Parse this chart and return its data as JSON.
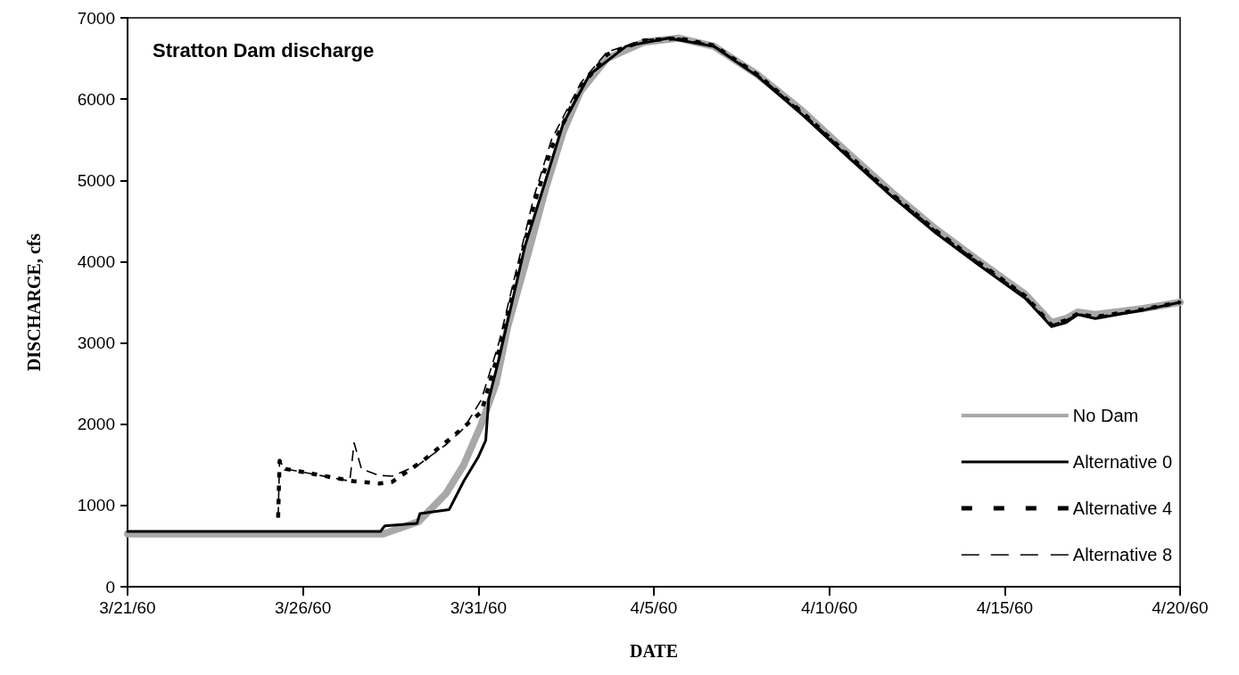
{
  "chart_data": {
    "type": "line",
    "title": "Stratton Dam discharge",
    "xlabel": "DATE",
    "ylabel": "DISCHARGE, cfs",
    "xlim": [
      "1960-03-21",
      "1960-04-20"
    ],
    "xticks": [
      {
        "value": "1960-03-21",
        "label": "3/21/60"
      },
      {
        "value": "1960-03-26",
        "label": "3/26/60"
      },
      {
        "value": "1960-03-31",
        "label": "3/31/60"
      },
      {
        "value": "1960-04-05",
        "label": "4/5/60"
      },
      {
        "value": "1960-04-10",
        "label": "4/10/60"
      },
      {
        "value": "1960-04-15",
        "label": "4/15/60"
      },
      {
        "value": "1960-04-20",
        "label": "4/20/60"
      }
    ],
    "ylim": [
      0,
      7000
    ],
    "yticks": [
      0,
      1000,
      2000,
      3000,
      4000,
      5000,
      6000,
      7000
    ],
    "grid": false,
    "legend": "bottom right",
    "marker": "none",
    "series": [
      {
        "name": "No Dam",
        "color": "#a8a8a8",
        "line_style": "solid",
        "x": [
          "1960-03-21T00:00",
          "1960-03-28T07:00",
          "1960-03-29T07:00",
          "1960-03-30T02:00",
          "1960-03-30T14:00",
          "1960-03-31T02:00",
          "1960-03-31T12:00",
          "1960-03-31T20:00",
          "1960-04-01T10:00",
          "1960-04-01T22:00",
          "1960-04-02T10:00",
          "1960-04-02T22:00",
          "1960-04-03T16:00",
          "1960-04-04T17:00",
          "1960-04-05T17:00",
          "1960-04-06T17:00",
          "1960-04-07T23:00",
          "1960-04-09T06:00",
          "1960-04-10T12:00",
          "1960-04-11T19:00",
          "1960-04-13T01:00",
          "1960-04-14T07:00",
          "1960-04-15T14:00",
          "1960-04-16T08:00",
          "1960-04-16T18:00",
          "1960-04-17T02:00",
          "1960-04-17T14:00",
          "1960-04-18T22:00",
          "1960-04-20T00:00"
        ],
        "values": [
          650,
          650,
          800,
          1150,
          1500,
          2000,
          2500,
          3200,
          4100,
          4900,
          5600,
          6100,
          6500,
          6700,
          6750,
          6650,
          6300,
          5850,
          5350,
          4850,
          4400,
          4000,
          3600,
          3250,
          3300,
          3380,
          3350,
          3420,
          3500
        ]
      },
      {
        "name": "Alternative 0",
        "color": "#000000",
        "line_style": "solid",
        "x": [
          "1960-03-21T00:00",
          "1960-03-28T05:00",
          "1960-03-28T08:00",
          "1960-03-29T06:00",
          "1960-03-29T08:00",
          "1960-03-30T04:00",
          "1960-03-30T14:00",
          "1960-03-31T00:00",
          "1960-03-31T05:00",
          "1960-03-31T07:00",
          "1960-03-31T14:00",
          "1960-03-31T23:00",
          "1960-04-01T08:00",
          "1960-04-01T22:00",
          "1960-04-02T10:00",
          "1960-04-03T04:00",
          "1960-04-04T05:00",
          "1960-04-05T10:00",
          "1960-04-06T17:00",
          "1960-04-07T23:00",
          "1960-04-09T06:00",
          "1960-04-10T12:00",
          "1960-04-11T19:00",
          "1960-04-13T01:00",
          "1960-04-14T07:00",
          "1960-04-15T14:00",
          "1960-04-16T08:00",
          "1960-04-16T18:00",
          "1960-04-17T02:00",
          "1960-04-17T14:00",
          "1960-04-18T22:00",
          "1960-04-20T00:00"
        ],
        "values": [
          680,
          680,
          750,
          780,
          900,
          950,
          1300,
          1600,
          1800,
          2300,
          2800,
          3500,
          4200,
          5000,
          5700,
          6300,
          6650,
          6750,
          6650,
          6280,
          5800,
          5300,
          4800,
          4350,
          3950,
          3550,
          3200,
          3250,
          3350,
          3300,
          3400,
          3500
        ]
      },
      {
        "name": "Alternative 4",
        "color": "#000000",
        "line_style": "dotted",
        "x": [
          "1960-03-25T07:00",
          "1960-03-25T08:00",
          "1960-03-25T12:00",
          "1960-03-27T10:00",
          "1960-03-28T04:00",
          "1960-03-28T13:00",
          "1960-03-29T10:00",
          "1960-03-30T06:00",
          "1960-03-31T02:00",
          "1960-03-31T14:00",
          "1960-04-01T02:00",
          "1960-04-01T14:00",
          "1960-04-02T02:00",
          "1960-04-02T22:00",
          "1960-04-03T16:00",
          "1960-04-04T17:00",
          "1960-04-05T17:00",
          "1960-04-06T17:00",
          "1960-04-07T23:00",
          "1960-04-09T06:00",
          "1960-04-10T12:00",
          "1960-04-11T19:00",
          "1960-04-13T01:00",
          "1960-04-14T07:00",
          "1960-04-15T14:00",
          "1960-04-16T08:00",
          "1960-04-16T18:00",
          "1960-04-17T02:00",
          "1960-04-17T14:00",
          "1960-04-18T22:00",
          "1960-04-20T00:00"
        ],
        "values": [
          850,
          1550,
          1450,
          1300,
          1270,
          1290,
          1550,
          1840,
          2150,
          2900,
          3800,
          4700,
          5400,
          6150,
          6550,
          6720,
          6750,
          6660,
          6300,
          5830,
          5330,
          4830,
          4380,
          3980,
          3580,
          3220,
          3280,
          3360,
          3320,
          3410,
          3500
        ]
      },
      {
        "name": "Alternative 8",
        "color": "#000000",
        "line_style": "dashed",
        "x": [
          "1960-03-25T07:00",
          "1960-03-25T08:00",
          "1960-03-25T12:00",
          "1960-03-27T08:00",
          "1960-03-27T11:00",
          "1960-03-27T16:00",
          "1960-03-28T04:00",
          "1960-03-28T13:00",
          "1960-03-29T07:00",
          "1960-03-30T02:00",
          "1960-03-30T14:00",
          "1960-03-31T02:00",
          "1960-03-31T14:00",
          "1960-04-01T02:00",
          "1960-04-01T14:00",
          "1960-04-02T02:00",
          "1960-04-02T22:00",
          "1960-04-03T16:00",
          "1960-04-04T17:00",
          "1960-04-05T17:00",
          "1960-04-06T17:00",
          "1960-04-07T23:00",
          "1960-04-09T06:00",
          "1960-04-10T12:00",
          "1960-04-11T19:00",
          "1960-04-13T01:00",
          "1960-04-14T07:00",
          "1960-04-15T14:00",
          "1960-04-16T08:00",
          "1960-04-16T18:00",
          "1960-04-17T02:00",
          "1960-04-17T14:00",
          "1960-04-18T22:00",
          "1960-04-20T00:00"
        ],
        "values": [
          850,
          1550,
          1450,
          1300,
          1770,
          1450,
          1370,
          1360,
          1500,
          1750,
          1950,
          2300,
          3000,
          3900,
          4800,
          5500,
          6200,
          6580,
          6730,
          6750,
          6660,
          6300,
          5830,
          5330,
          4830,
          4380,
          3980,
          3580,
          3220,
          3280,
          3360,
          3320,
          3410,
          3500
        ]
      }
    ]
  }
}
